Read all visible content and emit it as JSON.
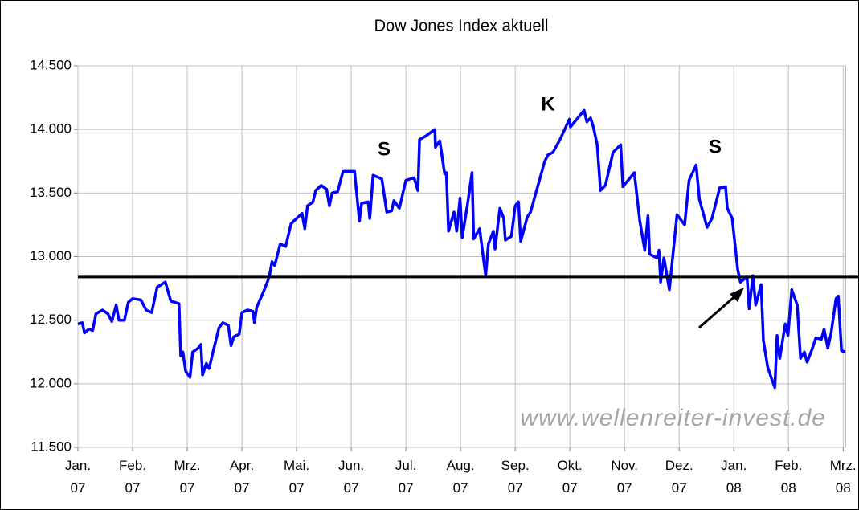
{
  "chart_data": {
    "type": "line",
    "title": "Dow Jones Index aktuell",
    "color": "#0000ff",
    "hline": 12840,
    "annotations": [
      "S",
      "K",
      "S",
      "www.wellenreiter-invest.de"
    ],
    "xlim": [
      0,
      14.04
    ],
    "xticks": [
      {
        "value": 0,
        "label": "Jan.\n07"
      },
      {
        "value": 1,
        "label": "Feb.\n07"
      },
      {
        "value": 2,
        "label": "Mrz.\n07"
      },
      {
        "value": 3,
        "label": "Apr.\n07"
      },
      {
        "value": 4,
        "label": "Mai.\n07"
      },
      {
        "value": 5,
        "label": "Jun.\n07"
      },
      {
        "value": 6,
        "label": "Jul.\n07"
      },
      {
        "value": 7,
        "label": "Aug.\n07"
      },
      {
        "value": 8,
        "label": "Sep.\n07"
      },
      {
        "value": 9,
        "label": "Okt.\n07"
      },
      {
        "value": 10,
        "label": "Nov.\n07"
      },
      {
        "value": 11,
        "label": "Dez.\n07"
      },
      {
        "value": 12,
        "label": "Jan.\n08"
      },
      {
        "value": 13,
        "label": "Feb.\n08"
      },
      {
        "value": 14,
        "label": "Mrz.\n08"
      }
    ],
    "ylim": [
      11500,
      14500
    ],
    "yticks": [
      {
        "value": 11500,
        "label": "11.500"
      },
      {
        "value": 12000,
        "label": "12.000"
      },
      {
        "value": 12500,
        "label": "12.500"
      },
      {
        "value": 13000,
        "label": "13.000"
      },
      {
        "value": 13500,
        "label": "13.500"
      },
      {
        "value": 14000,
        "label": "14.000"
      },
      {
        "value": 14500,
        "label": "14.500"
      }
    ],
    "grid": true,
    "x": [
      0,
      0.08,
      0.12,
      0.2,
      0.27,
      0.33,
      0.45,
      0.55,
      0.62,
      0.7,
      0.75,
      0.85,
      0.92,
      1.0,
      1.15,
      1.25,
      1.35,
      1.45,
      1.6,
      1.7,
      1.85,
      1.88,
      1.92,
      1.97,
      2.05,
      2.1,
      2.2,
      2.25,
      2.28,
      2.35,
      2.4,
      2.5,
      2.58,
      2.65,
      2.75,
      2.8,
      2.85,
      2.95,
      3.0,
      3.1,
      3.2,
      3.23,
      3.27,
      3.4,
      3.5,
      3.55,
      3.6,
      3.7,
      3.8,
      3.9,
      4.0,
      4.1,
      4.15,
      4.2,
      4.3,
      4.35,
      4.45,
      4.55,
      4.6,
      4.65,
      4.75,
      4.85,
      5.06,
      5.15,
      5.19,
      5.31,
      5.34,
      5.4,
      5.56,
      5.65,
      5.74,
      5.78,
      5.88,
      6.0,
      6.15,
      6.22,
      6.25,
      6.37,
      6.53,
      6.54,
      6.62,
      6.71,
      6.74,
      6.78,
      6.88,
      6.93,
      6.99,
      7.03,
      7.13,
      7.21,
      7.24,
      7.35,
      7.4,
      7.46,
      7.51,
      7.6,
      7.63,
      7.72,
      7.79,
      7.82,
      7.93,
      8.0,
      8.06,
      8.1,
      8.22,
      8.28,
      8.54,
      8.6,
      8.69,
      8.82,
      8.99,
      9.01,
      9.26,
      9.31,
      9.38,
      9.43,
      9.5,
      9.56,
      9.65,
      9.79,
      9.93,
      9.97,
      10.18,
      10.28,
      10.37,
      10.43,
      10.46,
      10.59,
      10.63,
      10.66,
      10.72,
      10.82,
      10.96,
      11.1,
      11.18,
      11.31,
      11.37,
      11.51,
      11.6,
      11.74,
      11.85,
      11.88,
      11.97,
      12.07,
      12.12,
      12.24,
      12.28,
      12.35,
      12.4,
      12.5,
      12.54,
      12.62,
      12.69,
      12.75,
      12.79,
      12.84,
      12.94,
      12.99,
      13.06,
      13.16,
      13.22,
      13.29,
      13.34,
      13.43,
      13.5,
      13.6,
      13.65,
      13.72,
      13.78,
      13.87,
      13.91,
      13.97,
      14.04
    ],
    "values": [
      12470,
      12480,
      12400,
      12430,
      12420,
      12550,
      12580,
      12550,
      12490,
      12620,
      12500,
      12500,
      12640,
      12670,
      12660,
      12580,
      12560,
      12760,
      12800,
      12650,
      12630,
      12220,
      12250,
      12100,
      12050,
      12250,
      12280,
      12310,
      12070,
      12160,
      12120,
      12300,
      12440,
      12480,
      12460,
      12300,
      12370,
      12390,
      12560,
      12580,
      12570,
      12480,
      12600,
      12730,
      12840,
      12960,
      12930,
      13100,
      13080,
      13260,
      13300,
      13340,
      13220,
      13400,
      13430,
      13520,
      13560,
      13530,
      13400,
      13500,
      13510,
      13670,
      13670,
      13280,
      13420,
      13430,
      13300,
      13640,
      13610,
      13350,
      13360,
      13440,
      13380,
      13600,
      13620,
      13520,
      13920,
      13950,
      14000,
      13860,
      13910,
      13650,
      13660,
      13200,
      13350,
      13200,
      13460,
      13150,
      13420,
      13660,
      13140,
      13220,
      13050,
      12850,
      13100,
      13200,
      13060,
      13380,
      13300,
      13130,
      13160,
      13400,
      13430,
      13120,
      13310,
      13350,
      13750,
      13800,
      13820,
      13920,
      14080,
      14020,
      14150,
      14060,
      14090,
      14020,
      13880,
      13520,
      13560,
      13820,
      13880,
      13550,
      13660,
      13280,
      13050,
      13320,
      13020,
      12990,
      13050,
      12800,
      12990,
      12740,
      13330,
      13250,
      13600,
      13720,
      13450,
      13230,
      13300,
      13540,
      13550,
      13380,
      13300,
      12900,
      12800,
      12840,
      12590,
      12850,
      12620,
      12780,
      12340,
      12130,
      12040,
      11970,
      12380,
      12200,
      12470,
      12380,
      12740,
      12620,
      12200,
      12250,
      12170,
      12270,
      12360,
      12350,
      12430,
      12280,
      12400,
      12670,
      12690,
      12260,
      12250
    ]
  }
}
